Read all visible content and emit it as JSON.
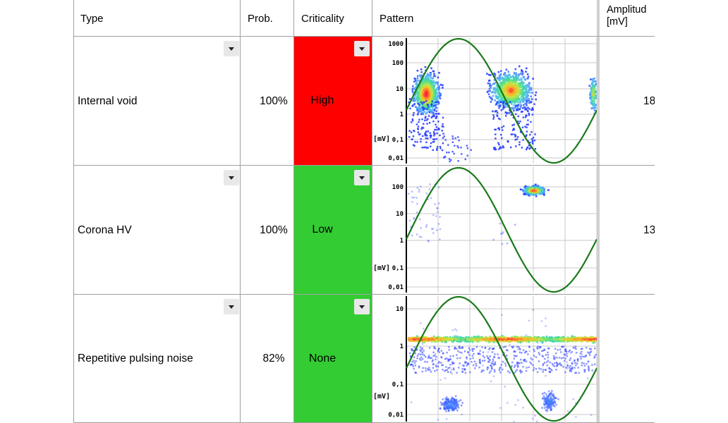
{
  "headers": {
    "type": "Type",
    "prob": "Prob.",
    "criticality": "Criticality",
    "pattern": "Pattern",
    "amplitude_line1": "Amplitud",
    "amplitude_line2": "[mV]"
  },
  "rows": [
    {
      "type": "Internal void",
      "prob": "100%",
      "criticality": "High",
      "criticality_color": "#ff0000",
      "amplitude": "18",
      "pattern": {
        "y_ticks": [
          "1000",
          "100",
          "10",
          "1",
          "0,1",
          "0,01"
        ],
        "unit": "[mV]"
      }
    },
    {
      "type": "Corona HV",
      "prob": "100%",
      "criticality": "Low",
      "criticality_color": "#33cc33",
      "amplitude": "13",
      "pattern": {
        "y_ticks": [
          "100",
          "10",
          "1",
          "0,1",
          "0,01"
        ],
        "unit": "[mV]"
      }
    },
    {
      "type": "Repetitive pulsing noise",
      "prob": "82%",
      "criticality": "None",
      "criticality_color": "#33cc33",
      "amplitude": "",
      "pattern": {
        "y_ticks": [
          "10",
          "1",
          "0,1",
          "0,01"
        ],
        "unit": "[mV]"
      }
    }
  ],
  "colors": {
    "sine": "#1a7a1a",
    "grid": "#c8c8c8"
  }
}
